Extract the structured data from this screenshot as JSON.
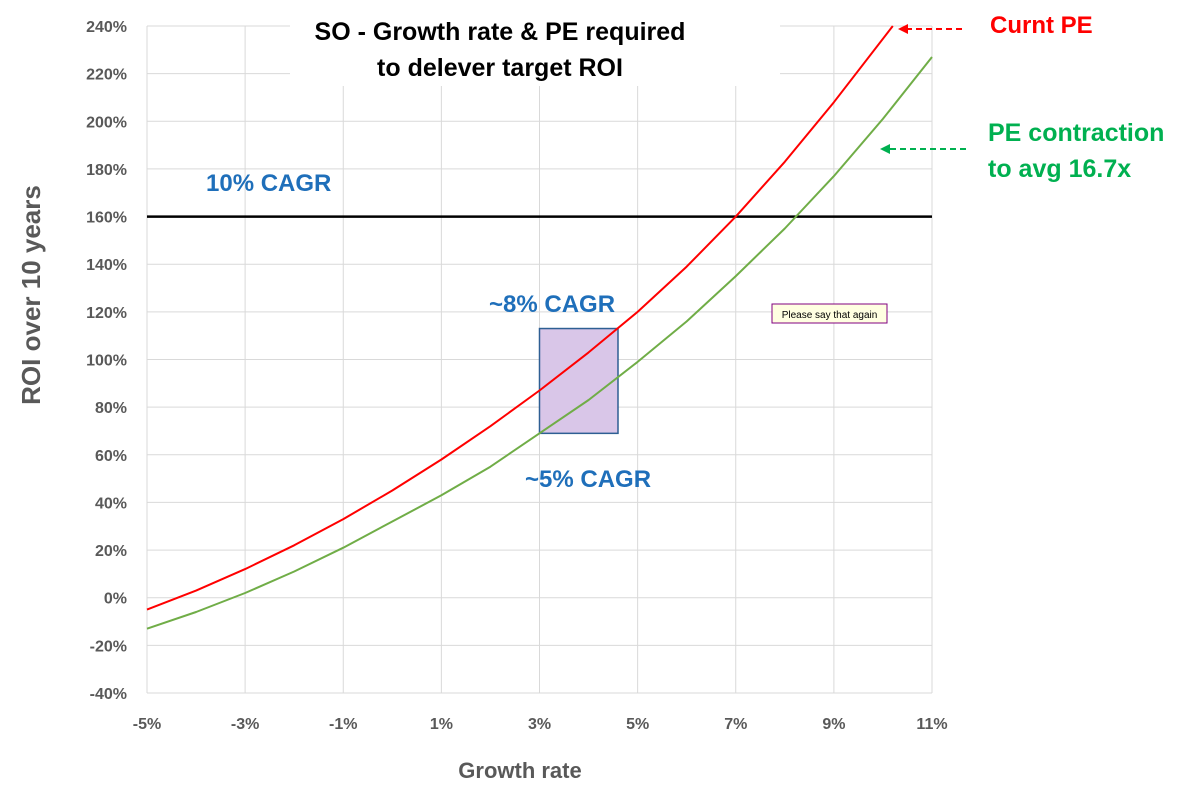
{
  "chart_data": {
    "type": "line",
    "title": [
      "SO - Growth rate & PE required",
      "to delever target ROI"
    ],
    "xlabel": "Growth rate",
    "ylabel": "ROI over 10 years",
    "xlim": [
      -0.05,
      0.11
    ],
    "ylim": [
      -0.4,
      2.4
    ],
    "x_ticks": [
      "-5%",
      "-3%",
      "-1%",
      "1%",
      "3%",
      "5%",
      "7%",
      "9%",
      "11%"
    ],
    "y_ticks": [
      "240%",
      "220%",
      "200%",
      "180%",
      "160%",
      "140%",
      "120%",
      "100%",
      "80%",
      "60%",
      "40%",
      "20%",
      "0%",
      "-20%",
      "-40%"
    ],
    "grid": "vertical and horizontal",
    "series": [
      {
        "name": "Curnt PE",
        "color": "#ff0000",
        "x": [
          -0.05,
          -0.04,
          -0.03,
          -0.02,
          -0.01,
          0.0,
          0.01,
          0.02,
          0.03,
          0.04,
          0.05,
          0.06,
          0.07,
          0.08,
          0.09,
          0.102
        ],
        "y": [
          -0.05,
          0.03,
          0.12,
          0.22,
          0.33,
          0.45,
          0.58,
          0.72,
          0.87,
          1.03,
          1.2,
          1.39,
          1.6,
          1.83,
          2.08,
          2.4
        ]
      },
      {
        "name": "PE contraction to avg 16.7x",
        "color": "#70ad47",
        "x": [
          -0.05,
          -0.04,
          -0.03,
          -0.02,
          -0.01,
          0.0,
          0.01,
          0.02,
          0.03,
          0.04,
          0.05,
          0.06,
          0.07,
          0.08,
          0.09,
          0.1,
          0.11
        ],
        "y": [
          -0.13,
          -0.06,
          0.02,
          0.11,
          0.21,
          0.32,
          0.43,
          0.55,
          0.69,
          0.83,
          0.99,
          1.16,
          1.35,
          1.55,
          1.77,
          2.01,
          2.27
        ]
      }
    ],
    "reference_line": {
      "label": "10% CAGR",
      "y": 1.6,
      "color": "#000000"
    },
    "highlight_box": {
      "x": [
        0.03,
        0.046
      ],
      "y": [
        0.69,
        1.13
      ],
      "fill": "#d9c6e8",
      "stroke": "#2e5f93"
    },
    "annotations": [
      {
        "text": "~8% CAGR",
        "color": "#1f6fba"
      },
      {
        "text": "~5% CAGR",
        "color": "#1f6fba"
      },
      {
        "text": "Curnt PE",
        "color": "#ff0000"
      },
      {
        "text": "PE contraction",
        "color": "#00b050"
      },
      {
        "text": "to avg 16.7x",
        "color": "#00b050"
      }
    ],
    "tooltip": "Please say that again"
  }
}
